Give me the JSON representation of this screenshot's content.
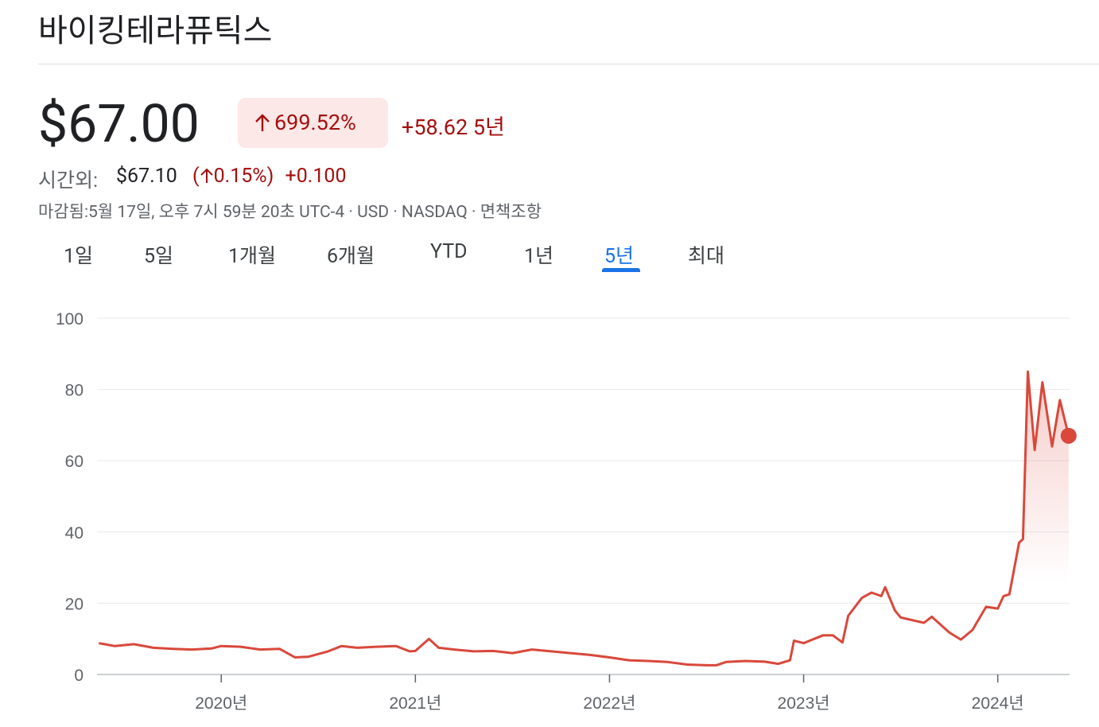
{
  "header": {
    "title": "바이킹테라퓨틱스",
    "price": "$67.00",
    "change_pct": "699.52%",
    "change_abs": "+58.62",
    "period": "5년",
    "after_label": "시간외:",
    "after_price": "$67.10",
    "after_open": "(",
    "after_pct": "0.15%",
    "after_close": ")",
    "after_abs": "+0.100",
    "meta": "마감됨:5월 17일, 오후 7시 59분 20초 UTC-4 · USD · NASDAQ · 면책조항"
  },
  "tabs": [
    "1일",
    "5일",
    "1개월",
    "6개월",
    "YTD",
    "1년",
    "5년",
    "최대"
  ],
  "chart_data": {
    "type": "line",
    "grid": true,
    "x": [
      2019.37,
      2019.45,
      2019.55,
      2019.65,
      2019.75,
      2019.85,
      2019.95,
      2020.0,
      2020.1,
      2020.2,
      2020.3,
      2020.38,
      2020.45,
      2020.55,
      2020.62,
      2020.7,
      2020.8,
      2020.9,
      2020.97,
      2021.0,
      2021.07,
      2021.12,
      2021.2,
      2021.3,
      2021.4,
      2021.5,
      2021.6,
      2021.7,
      2021.8,
      2021.9,
      2022.0,
      2022.1,
      2022.2,
      2022.3,
      2022.4,
      2022.5,
      2022.55,
      2022.6,
      2022.7,
      2022.8,
      2022.87,
      2022.93,
      2022.95,
      2023.0,
      2023.1,
      2023.15,
      2023.2,
      2023.23,
      2023.3,
      2023.35,
      2023.4,
      2023.42,
      2023.47,
      2023.5,
      2023.58,
      2023.62,
      2023.66,
      2023.75,
      2023.81,
      2023.87,
      2023.94,
      2024.0,
      2024.03,
      2024.06,
      2024.11,
      2024.13,
      2024.155,
      2024.19,
      2024.23,
      2024.28,
      2024.32,
      2024.365
    ],
    "series": [
      {
        "name": "바이킹테라퓨틱스",
        "color": "#d9483b",
        "values": [
          8.8,
          8.0,
          8.5,
          7.5,
          7.2,
          7.0,
          7.3,
          8.0,
          7.8,
          7.0,
          7.2,
          4.8,
          5.0,
          6.5,
          8.0,
          7.5,
          7.8,
          8.0,
          6.5,
          6.6,
          10.0,
          7.5,
          7.0,
          6.5,
          6.6,
          6.0,
          7.0,
          6.5,
          6.0,
          5.5,
          4.8,
          4.0,
          3.8,
          3.5,
          2.8,
          2.6,
          2.6,
          3.5,
          3.8,
          3.6,
          3.0,
          4.0,
          9.5,
          8.8,
          11.0,
          11.0,
          9.0,
          16.5,
          21.5,
          23.0,
          22.0,
          24.5,
          18.0,
          16.0,
          15.0,
          14.5,
          16.2,
          11.8,
          9.8,
          12.5,
          19.0,
          18.5,
          22.0,
          22.5,
          37.0,
          38.0,
          85.0,
          63.0,
          82.0,
          64.0,
          77.0,
          67.0
        ]
      }
    ],
    "xlim": [
      2019.36,
      2024.37
    ],
    "xticks": [
      {
        "value": 2020,
        "label": "2020년"
      },
      {
        "value": 2021,
        "label": "2021년"
      },
      {
        "value": 2022,
        "label": "2022년"
      },
      {
        "value": 2023,
        "label": "2023년"
      },
      {
        "value": 2024,
        "label": "2024년"
      }
    ],
    "ylim": [
      0,
      100
    ],
    "yticks": [
      0,
      20,
      40,
      60,
      80,
      100
    ]
  }
}
